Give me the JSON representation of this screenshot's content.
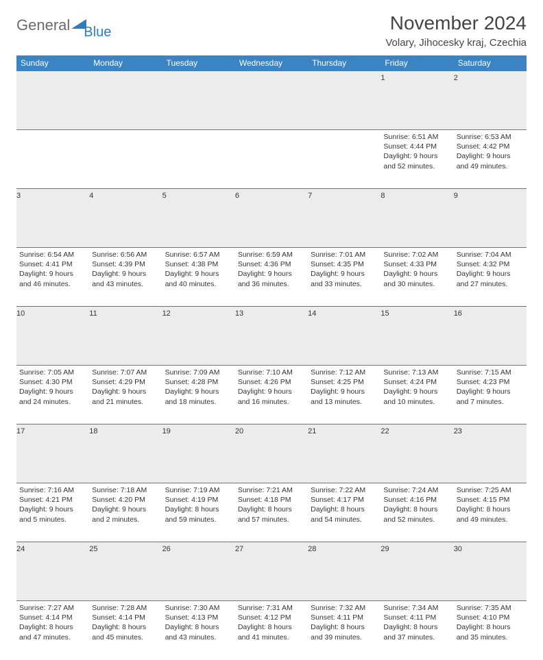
{
  "logo": {
    "text1": "General",
    "text2": "Blue"
  },
  "title": "November 2024",
  "location": "Volary, Jihocesky kraj, Czechia",
  "colors": {
    "header_bg": "#3a84c4",
    "header_fg": "#ffffff",
    "row_border": "#5a7a9a",
    "daynum_bg": "#ececec",
    "logo_gray": "#6b6b6b",
    "logo_blue": "#2e7cc2"
  },
  "dayHeaders": [
    "Sunday",
    "Monday",
    "Tuesday",
    "Wednesday",
    "Thursday",
    "Friday",
    "Saturday"
  ],
  "weeks": [
    [
      null,
      null,
      null,
      null,
      null,
      {
        "n": "1",
        "sr": "6:51 AM",
        "ss": "4:44 PM",
        "dl": "9 hours and 52 minutes."
      },
      {
        "n": "2",
        "sr": "6:53 AM",
        "ss": "4:42 PM",
        "dl": "9 hours and 49 minutes."
      }
    ],
    [
      {
        "n": "3",
        "sr": "6:54 AM",
        "ss": "4:41 PM",
        "dl": "9 hours and 46 minutes."
      },
      {
        "n": "4",
        "sr": "6:56 AM",
        "ss": "4:39 PM",
        "dl": "9 hours and 43 minutes."
      },
      {
        "n": "5",
        "sr": "6:57 AM",
        "ss": "4:38 PM",
        "dl": "9 hours and 40 minutes."
      },
      {
        "n": "6",
        "sr": "6:59 AM",
        "ss": "4:36 PM",
        "dl": "9 hours and 36 minutes."
      },
      {
        "n": "7",
        "sr": "7:01 AM",
        "ss": "4:35 PM",
        "dl": "9 hours and 33 minutes."
      },
      {
        "n": "8",
        "sr": "7:02 AM",
        "ss": "4:33 PM",
        "dl": "9 hours and 30 minutes."
      },
      {
        "n": "9",
        "sr": "7:04 AM",
        "ss": "4:32 PM",
        "dl": "9 hours and 27 minutes."
      }
    ],
    [
      {
        "n": "10",
        "sr": "7:05 AM",
        "ss": "4:30 PM",
        "dl": "9 hours and 24 minutes."
      },
      {
        "n": "11",
        "sr": "7:07 AM",
        "ss": "4:29 PM",
        "dl": "9 hours and 21 minutes."
      },
      {
        "n": "12",
        "sr": "7:09 AM",
        "ss": "4:28 PM",
        "dl": "9 hours and 18 minutes."
      },
      {
        "n": "13",
        "sr": "7:10 AM",
        "ss": "4:26 PM",
        "dl": "9 hours and 16 minutes."
      },
      {
        "n": "14",
        "sr": "7:12 AM",
        "ss": "4:25 PM",
        "dl": "9 hours and 13 minutes."
      },
      {
        "n": "15",
        "sr": "7:13 AM",
        "ss": "4:24 PM",
        "dl": "9 hours and 10 minutes."
      },
      {
        "n": "16",
        "sr": "7:15 AM",
        "ss": "4:23 PM",
        "dl": "9 hours and 7 minutes."
      }
    ],
    [
      {
        "n": "17",
        "sr": "7:16 AM",
        "ss": "4:21 PM",
        "dl": "9 hours and 5 minutes."
      },
      {
        "n": "18",
        "sr": "7:18 AM",
        "ss": "4:20 PM",
        "dl": "9 hours and 2 minutes."
      },
      {
        "n": "19",
        "sr": "7:19 AM",
        "ss": "4:19 PM",
        "dl": "8 hours and 59 minutes."
      },
      {
        "n": "20",
        "sr": "7:21 AM",
        "ss": "4:18 PM",
        "dl": "8 hours and 57 minutes."
      },
      {
        "n": "21",
        "sr": "7:22 AM",
        "ss": "4:17 PM",
        "dl": "8 hours and 54 minutes."
      },
      {
        "n": "22",
        "sr": "7:24 AM",
        "ss": "4:16 PM",
        "dl": "8 hours and 52 minutes."
      },
      {
        "n": "23",
        "sr": "7:25 AM",
        "ss": "4:15 PM",
        "dl": "8 hours and 49 minutes."
      }
    ],
    [
      {
        "n": "24",
        "sr": "7:27 AM",
        "ss": "4:14 PM",
        "dl": "8 hours and 47 minutes."
      },
      {
        "n": "25",
        "sr": "7:28 AM",
        "ss": "4:14 PM",
        "dl": "8 hours and 45 minutes."
      },
      {
        "n": "26",
        "sr": "7:30 AM",
        "ss": "4:13 PM",
        "dl": "8 hours and 43 minutes."
      },
      {
        "n": "27",
        "sr": "7:31 AM",
        "ss": "4:12 PM",
        "dl": "8 hours and 41 minutes."
      },
      {
        "n": "28",
        "sr": "7:32 AM",
        "ss": "4:11 PM",
        "dl": "8 hours and 39 minutes."
      },
      {
        "n": "29",
        "sr": "7:34 AM",
        "ss": "4:11 PM",
        "dl": "8 hours and 37 minutes."
      },
      {
        "n": "30",
        "sr": "7:35 AM",
        "ss": "4:10 PM",
        "dl": "8 hours and 35 minutes."
      }
    ]
  ],
  "labels": {
    "sunrise": "Sunrise:",
    "sunset": "Sunset:",
    "daylight": "Daylight:"
  }
}
